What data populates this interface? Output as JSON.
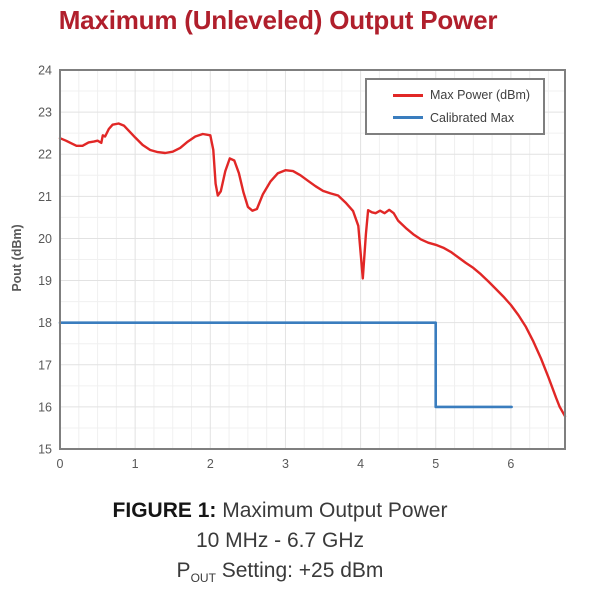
{
  "page": {
    "title": "Maximum (Unleveled) Output Power",
    "title_color": "#B01F2C"
  },
  "caption": {
    "line1_bold": "FIGURE 1:",
    "line1_rest": " Maximum Output Power",
    "line2": "10 MHz - 6.7 GHz",
    "line3_prefix": "P",
    "line3_sub": "OUT",
    "line3_rest": " Setting: +25 dBm"
  },
  "chart_data": {
    "type": "line",
    "title": "Maximum (Unleveled) Output Power",
    "xlabel": "",
    "ylabel": "Pout (dBm)",
    "xlim": [
      0,
      6.72
    ],
    "ylim": [
      15,
      24
    ],
    "xticks": [
      0,
      1,
      2,
      3,
      4,
      5,
      6
    ],
    "yticks": [
      15,
      16,
      17,
      18,
      19,
      20,
      21,
      22,
      23,
      24
    ],
    "grid": {
      "on": true,
      "minor_x_step": 0.25,
      "minor_y_step": 0.5,
      "major_x_step": 1,
      "major_y_step": 1
    },
    "legend_position": "top-right",
    "colors": {
      "frame": "#7F7F7F",
      "tick_text": "#595959",
      "grid_minor": "#F0F0F0",
      "grid_major": "#E2E2E2"
    },
    "series": [
      {
        "name": "Max Power (dBm)",
        "color": "#E12726",
        "width": 2.4,
        "points": [
          [
            0,
            22.38
          ],
          [
            0.08,
            22.32
          ],
          [
            0.15,
            22.26
          ],
          [
            0.22,
            22.2
          ],
          [
            0.3,
            22.2
          ],
          [
            0.38,
            22.28
          ],
          [
            0.45,
            22.3
          ],
          [
            0.5,
            22.32
          ],
          [
            0.55,
            22.27
          ],
          [
            0.57,
            22.45
          ],
          [
            0.6,
            22.42
          ],
          [
            0.65,
            22.6
          ],
          [
            0.7,
            22.7
          ],
          [
            0.78,
            22.73
          ],
          [
            0.85,
            22.68
          ],
          [
            0.92,
            22.55
          ],
          [
            1.0,
            22.4
          ],
          [
            1.1,
            22.22
          ],
          [
            1.2,
            22.1
          ],
          [
            1.3,
            22.05
          ],
          [
            1.4,
            22.03
          ],
          [
            1.5,
            22.06
          ],
          [
            1.6,
            22.15
          ],
          [
            1.7,
            22.3
          ],
          [
            1.8,
            22.42
          ],
          [
            1.9,
            22.48
          ],
          [
            2.0,
            22.45
          ],
          [
            2.04,
            22.1
          ],
          [
            2.07,
            21.3
          ],
          [
            2.1,
            21.02
          ],
          [
            2.14,
            21.12
          ],
          [
            2.2,
            21.6
          ],
          [
            2.26,
            21.9
          ],
          [
            2.32,
            21.85
          ],
          [
            2.38,
            21.55
          ],
          [
            2.44,
            21.1
          ],
          [
            2.5,
            20.75
          ],
          [
            2.56,
            20.66
          ],
          [
            2.62,
            20.7
          ],
          [
            2.7,
            21.05
          ],
          [
            2.8,
            21.35
          ],
          [
            2.9,
            21.55
          ],
          [
            3.0,
            21.62
          ],
          [
            3.1,
            21.6
          ],
          [
            3.2,
            21.5
          ],
          [
            3.3,
            21.37
          ],
          [
            3.4,
            21.24
          ],
          [
            3.5,
            21.13
          ],
          [
            3.6,
            21.07
          ],
          [
            3.7,
            21.02
          ],
          [
            3.8,
            20.85
          ],
          [
            3.9,
            20.65
          ],
          [
            3.97,
            20.3
          ],
          [
            4.03,
            19.05
          ],
          [
            4.07,
            20.1
          ],
          [
            4.1,
            20.67
          ],
          [
            4.15,
            20.62
          ],
          [
            4.2,
            20.6
          ],
          [
            4.26,
            20.66
          ],
          [
            4.32,
            20.6
          ],
          [
            4.38,
            20.68
          ],
          [
            4.44,
            20.6
          ],
          [
            4.5,
            20.42
          ],
          [
            4.6,
            20.25
          ],
          [
            4.7,
            20.1
          ],
          [
            4.8,
            19.98
          ],
          [
            4.9,
            19.9
          ],
          [
            5.0,
            19.85
          ],
          [
            5.1,
            19.78
          ],
          [
            5.2,
            19.68
          ],
          [
            5.3,
            19.55
          ],
          [
            5.4,
            19.42
          ],
          [
            5.5,
            19.3
          ],
          [
            5.6,
            19.15
          ],
          [
            5.7,
            18.98
          ],
          [
            5.8,
            18.8
          ],
          [
            5.9,
            18.62
          ],
          [
            6.0,
            18.42
          ],
          [
            6.1,
            18.18
          ],
          [
            6.2,
            17.9
          ],
          [
            6.3,
            17.55
          ],
          [
            6.4,
            17.15
          ],
          [
            6.5,
            16.7
          ],
          [
            6.6,
            16.22
          ],
          [
            6.65,
            16.0
          ],
          [
            6.72,
            15.78
          ]
        ]
      },
      {
        "name": "Calibrated Max",
        "color": "#3A7DBE",
        "width": 2.6,
        "points": [
          [
            0,
            18
          ],
          [
            5,
            18
          ],
          [
            5,
            16
          ],
          [
            6.01,
            16
          ]
        ]
      }
    ]
  }
}
